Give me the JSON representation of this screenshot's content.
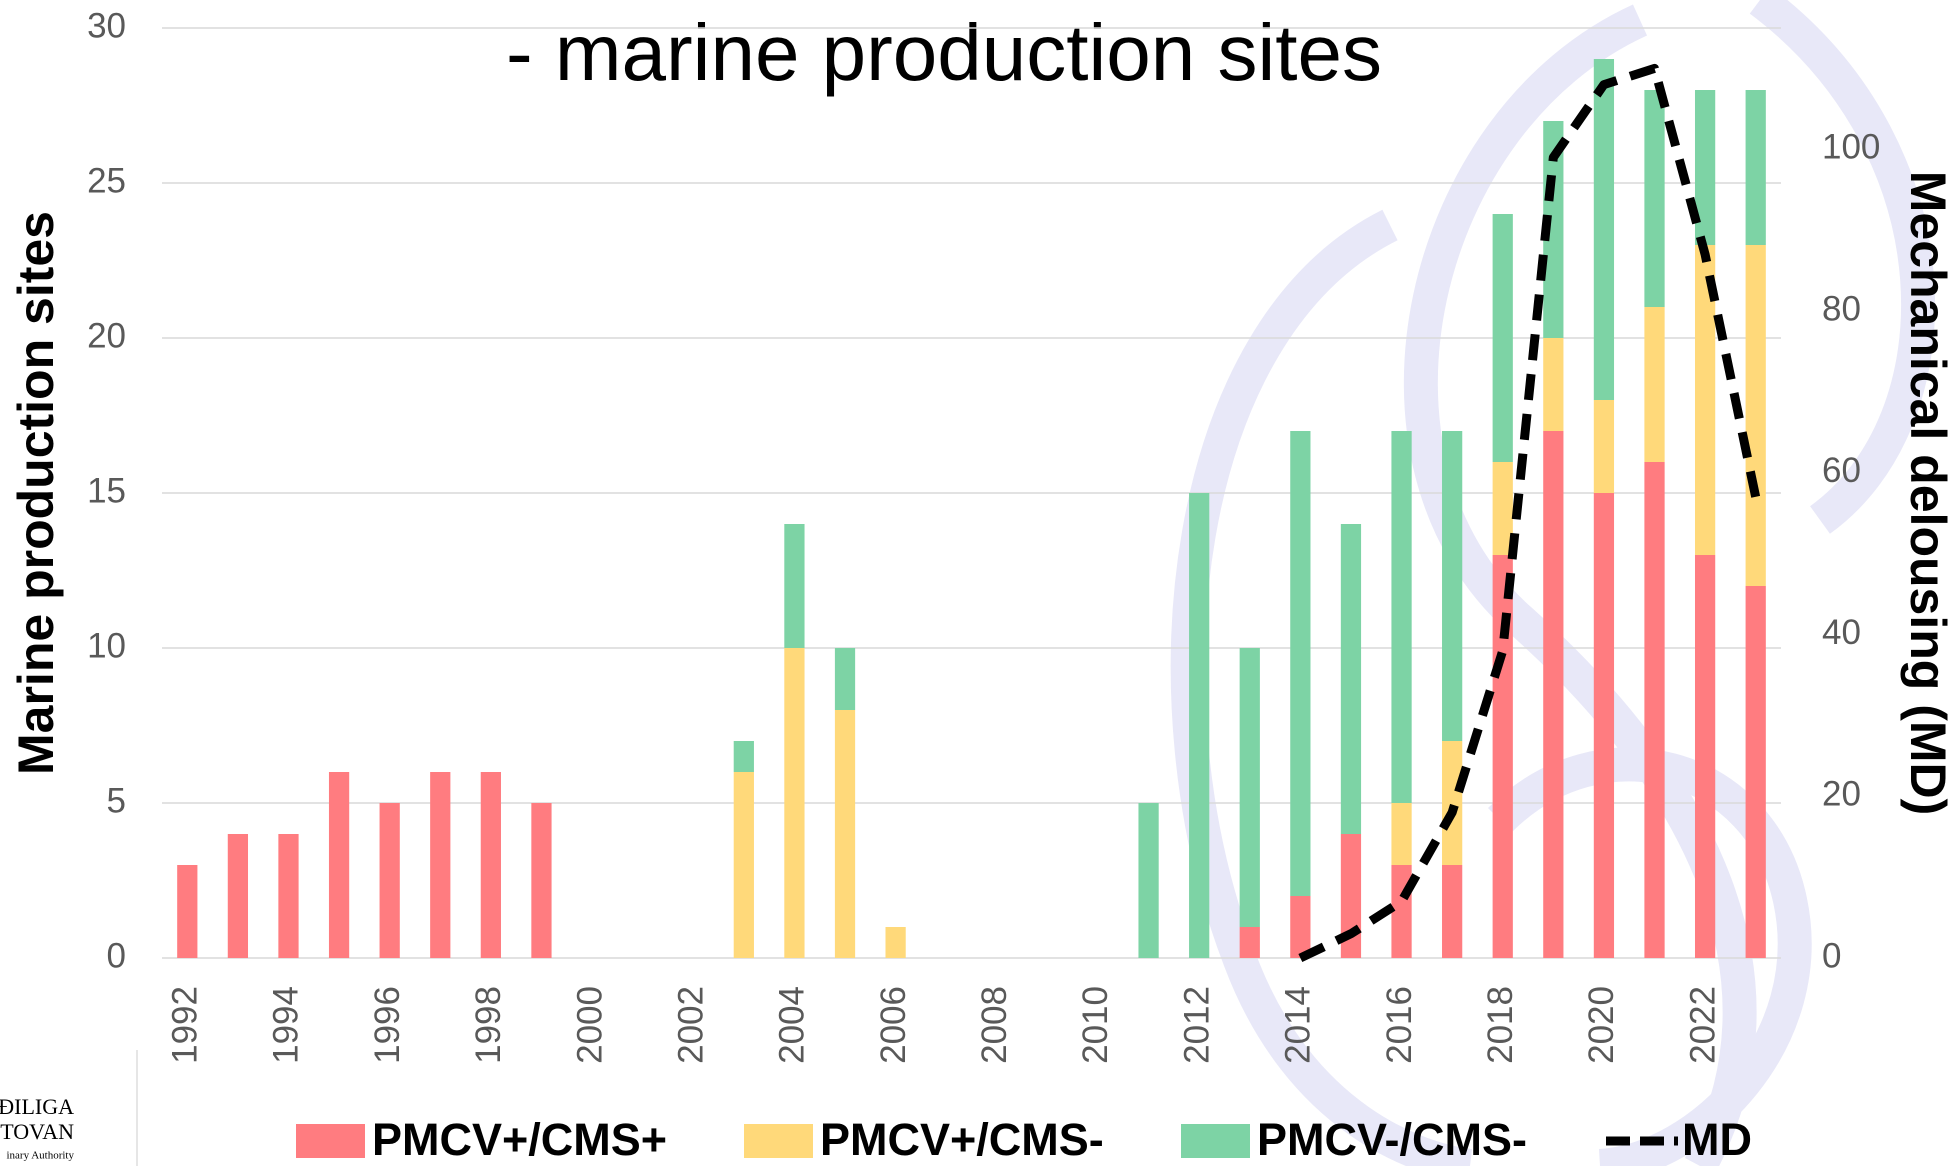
{
  "chart_data": {
    "type": "bar",
    "stacked": true,
    "title": "- marine production sites",
    "y_label": "Marine production sites",
    "y2_label": "Mechanical delousing (MD)",
    "categories": [
      "1992",
      null,
      "1994",
      null,
      "1996",
      null,
      "1998",
      null,
      "2000",
      null,
      "2002",
      null,
      "2004",
      null,
      "2006",
      null,
      "2008",
      null,
      "2010",
      null,
      "2012",
      null,
      "2014",
      null,
      "2016",
      null,
      "2018",
      null,
      "2020",
      null,
      "2022",
      null
    ],
    "series": [
      {
        "name": "PMCV+/CMS+",
        "color": "#ff7c80",
        "values": [
          3,
          4,
          4,
          6,
          5,
          6,
          6,
          5,
          0,
          0,
          0,
          0,
          0,
          0,
          0,
          0,
          0,
          0,
          0,
          0,
          0,
          1,
          2,
          4,
          3,
          3,
          13,
          17,
          15,
          16,
          13,
          12
        ]
      },
      {
        "name": "PMCV+/CMS-",
        "color": "#ffd97a",
        "values": [
          0,
          0,
          0,
          0,
          0,
          0,
          0,
          0,
          0,
          0,
          0,
          6,
          10,
          8,
          1,
          0,
          0,
          0,
          0,
          0,
          0,
          0,
          0,
          0,
          2,
          4,
          3,
          3,
          3,
          5,
          10,
          11
        ]
      },
      {
        "name": "PMCV-/CMS-",
        "color": "#7dd3a5",
        "values": [
          0,
          0,
          0,
          0,
          0,
          0,
          0,
          0,
          0,
          0,
          0,
          1,
          4,
          2,
          0,
          0,
          0,
          0,
          0,
          5,
          15,
          9,
          15,
          10,
          12,
          10,
          8,
          7,
          11,
          7,
          5,
          5
        ]
      },
      {
        "name": "MD",
        "type": "line",
        "axis": "y2",
        "color": "#000000",
        "dashed": true,
        "values": [
          null,
          null,
          null,
          null,
          null,
          null,
          null,
          null,
          null,
          null,
          null,
          null,
          null,
          null,
          null,
          null,
          null,
          null,
          null,
          null,
          null,
          null,
          0,
          3,
          7,
          18,
          38,
          99,
          108,
          110,
          87,
          57
        ]
      }
    ],
    "ylim": [
      0,
      30
    ],
    "yticks": [
      0,
      5,
      10,
      15,
      20,
      25,
      30
    ],
    "y2lim": [
      0,
      115
    ],
    "y2ticks": [
      0,
      20,
      40,
      60,
      80,
      100
    ],
    "grid": true,
    "legend": "bottom"
  },
  "logo": {
    "lines": [
      "ĐILIGA",
      "TOVAN",
      "inary Authority"
    ]
  }
}
